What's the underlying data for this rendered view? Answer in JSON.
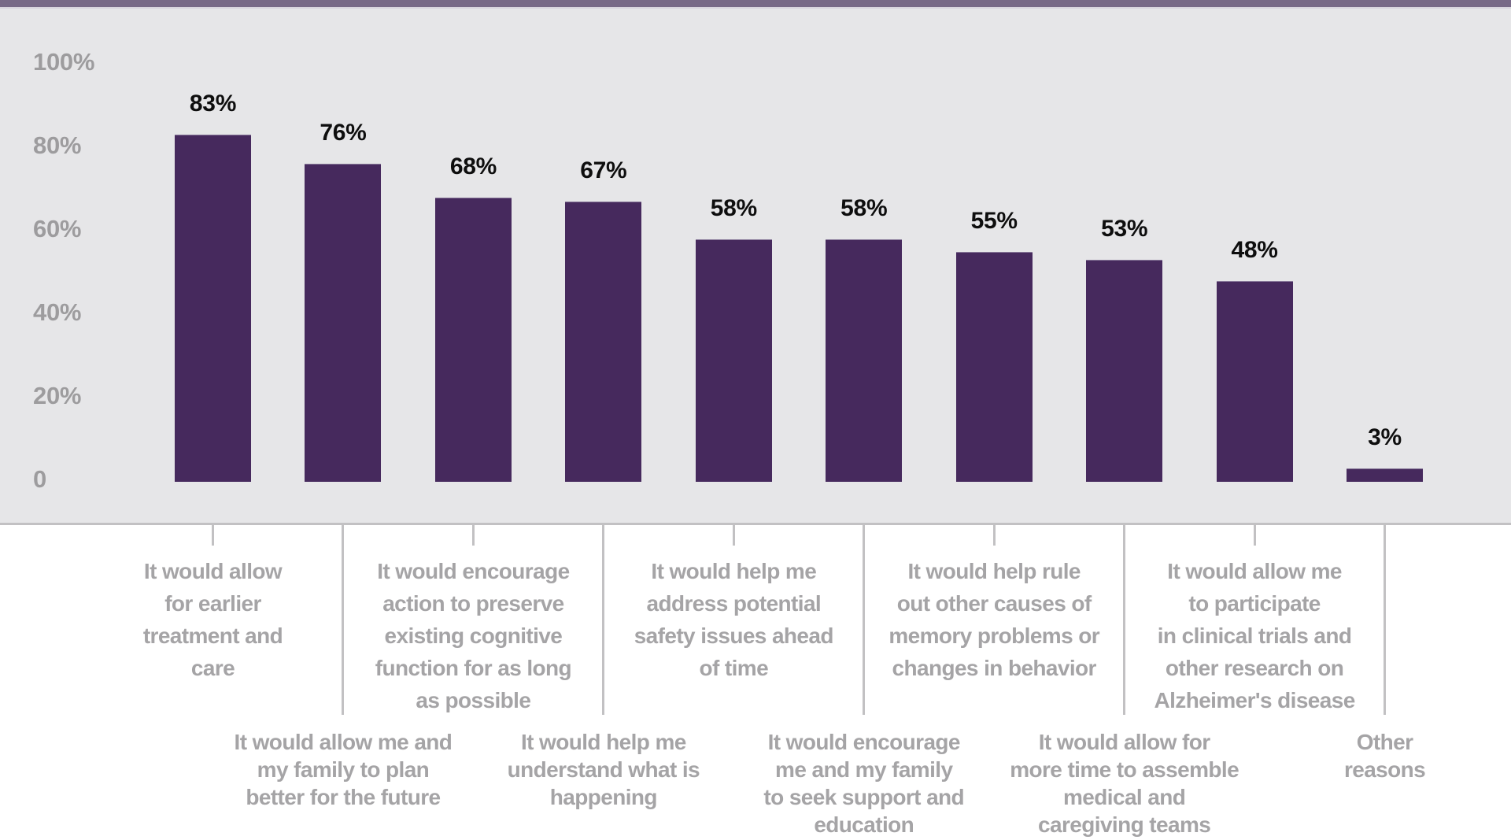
{
  "colors": {
    "top_strip": "#786a87",
    "plot_background": "#e6e6e8",
    "axis_and_ticks": "#c2c1c3",
    "bar": "#46295d",
    "value_label_text": "#0e0e0e",
    "axis_label_text": "#a5a4a6"
  },
  "chart_data": {
    "type": "bar",
    "title": "",
    "xlabel": "",
    "ylabel": "",
    "ylim": [
      0,
      100
    ],
    "grid": false,
    "legend": "none",
    "ytick_labels": [
      "100%",
      "80%",
      "60%",
      "40%",
      "20%",
      "0"
    ],
    "ytick_values": [
      100,
      80,
      60,
      40,
      20,
      0
    ],
    "categories": [
      "It would allow for earlier treatment and care",
      "It would allow me and my family to plan better for the future",
      "It would encourage action to preserve existing cognitive function for as long as possible",
      "It would help me understand what is happening",
      "It would help me address potential safety issues ahead of time",
      "It would encourage me and my family to seek support and education",
      "It would help rule out other causes of memory problems or changes in behavior",
      "It would allow for more time to assemble medical and caregiving teams",
      "It would allow me to participate in clinical trials and other research on Alzheimer's disease",
      "Other reasons"
    ],
    "values": [
      83,
      76,
      68,
      67,
      58,
      58,
      55,
      53,
      48,
      3
    ],
    "data_labels": [
      "83%",
      "76%",
      "68%",
      "67%",
      "58%",
      "58%",
      "55%",
      "53%",
      "48%",
      "3%"
    ],
    "category_label_lines": [
      {
        "row": 1,
        "lines": [
          "It would allow",
          "for earlier",
          "treatment and",
          "care"
        ]
      },
      {
        "row": 2,
        "lines": [
          "It would allow me and",
          "my family to plan",
          "better for the future"
        ]
      },
      {
        "row": 1,
        "lines": [
          "It would encourage",
          "action to preserve",
          "existing cognitive",
          "function for as long",
          "as possible"
        ]
      },
      {
        "row": 2,
        "lines": [
          "It would help me",
          "understand what is",
          "happening"
        ]
      },
      {
        "row": 1,
        "lines": [
          "It would help me",
          "address potential",
          "safety issues ahead",
          "of time"
        ]
      },
      {
        "row": 2,
        "lines": [
          "It would encourage",
          "me and my family",
          "to seek support and",
          "education"
        ]
      },
      {
        "row": 1,
        "lines": [
          "It would help rule",
          "out other causes of",
          "memory problems or",
          "changes in behavior"
        ]
      },
      {
        "row": 2,
        "lines": [
          "It would allow for",
          "more time to assemble",
          "medical and",
          "caregiving teams"
        ]
      },
      {
        "row": 1,
        "lines": [
          "It would allow me",
          "to participate",
          "in clinical trials and",
          "other research on",
          "Alzheimer's disease"
        ]
      },
      {
        "row": 2,
        "lines": [
          "Other",
          "reasons"
        ]
      }
    ]
  }
}
